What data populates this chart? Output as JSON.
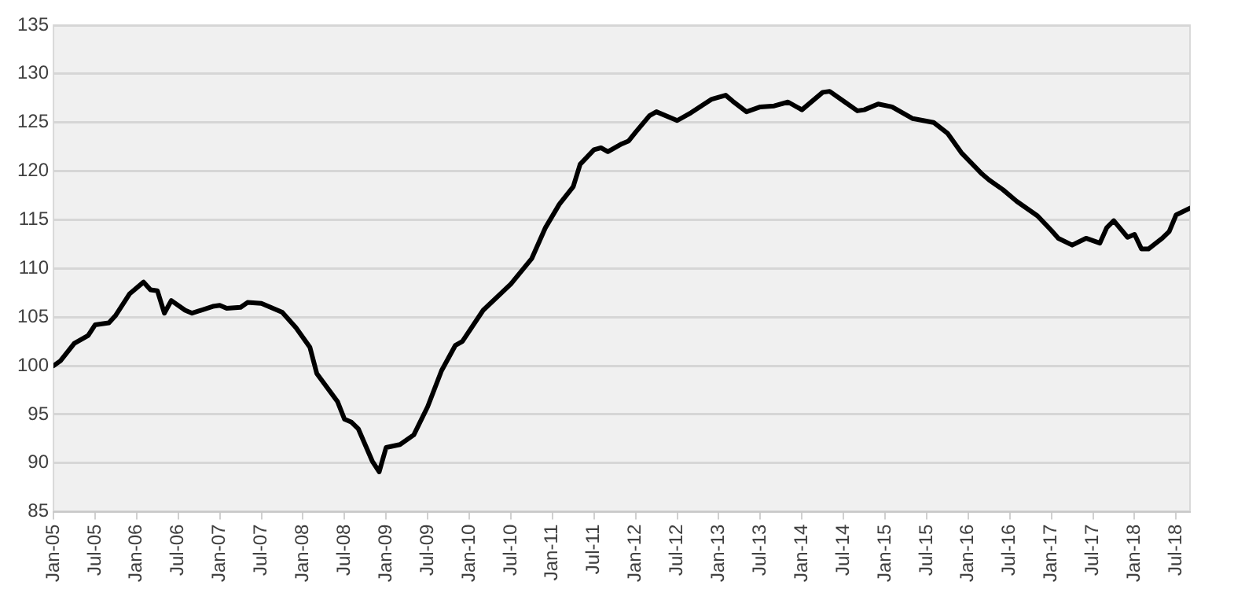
{
  "chart_data": {
    "type": "line",
    "color": "#000000",
    "marker": "none",
    "line_style": "solid",
    "grid": "y",
    "legend": false,
    "x": [
      "2005-01",
      "2005-02",
      "2005-04",
      "2005-06",
      "2005-07",
      "2005-09",
      "2005-10",
      "2005-12",
      "2006-02",
      "2006-03",
      "2006-04",
      "2006-05",
      "2006-06",
      "2006-08",
      "2006-09",
      "2006-12",
      "2007-01",
      "2007-02",
      "2007-04",
      "2007-05",
      "2007-07",
      "2007-10",
      "2007-12",
      "2008-02",
      "2008-03",
      "2008-06",
      "2008-07",
      "2008-08",
      "2008-09",
      "2008-11",
      "2008-12",
      "2009-01",
      "2009-03",
      "2009-05",
      "2009-07",
      "2009-09",
      "2009-11",
      "2009-12",
      "2010-03",
      "2010-07",
      "2010-10",
      "2010-12",
      "2011-02",
      "2011-04",
      "2011-05",
      "2011-07",
      "2011-08",
      "2011-09",
      "2011-11",
      "2011-12",
      "2012-01",
      "2012-03",
      "2012-04",
      "2012-07",
      "2012-09",
      "2012-12",
      "2013-02",
      "2013-03",
      "2013-05",
      "2013-07",
      "2013-09",
      "2013-11",
      "2014-01",
      "2014-04",
      "2014-05",
      "2014-07",
      "2014-09",
      "2014-10",
      "2014-12",
      "2015-02",
      "2015-05",
      "2015-08",
      "2015-10",
      "2015-12",
      "2016-03",
      "2016-04",
      "2016-06",
      "2016-08",
      "2016-11",
      "2017-01",
      "2017-02",
      "2017-04",
      "2017-06",
      "2017-08",
      "2017-09",
      "2017-10",
      "2017-12",
      "2018-01",
      "2018-02",
      "2018-03",
      "2018-05",
      "2018-06",
      "2018-07",
      "2018-09"
    ],
    "values": [
      100.0,
      100.5,
      102.3,
      103.1,
      104.2,
      104.4,
      105.2,
      107.4,
      108.6,
      107.8,
      107.7,
      105.4,
      106.7,
      105.7,
      105.4,
      106.1,
      106.2,
      105.9,
      106.0,
      106.5,
      106.4,
      105.5,
      103.9,
      101.9,
      99.2,
      96.3,
      94.5,
      94.2,
      93.5,
      90.2,
      89.1,
      91.6,
      91.9,
      92.9,
      95.8,
      99.5,
      102.1,
      102.5,
      105.7,
      108.4,
      111.0,
      114.2,
      116.6,
      118.4,
      120.7,
      122.2,
      122.4,
      122.0,
      122.8,
      123.1,
      124.0,
      125.7,
      126.1,
      125.2,
      126.0,
      127.4,
      127.8,
      127.2,
      126.1,
      126.6,
      126.7,
      127.1,
      126.3,
      128.1,
      128.2,
      127.2,
      126.2,
      126.3,
      126.9,
      126.6,
      125.4,
      125.0,
      123.9,
      121.9,
      119.7,
      119.1,
      118.1,
      116.9,
      115.4,
      113.9,
      113.1,
      112.4,
      113.1,
      112.6,
      114.2,
      114.9,
      113.2,
      113.5,
      112.0,
      112.0,
      113.1,
      113.8,
      115.5,
      116.2
    ],
    "xlim": [
      "2005-01",
      "2018-09"
    ],
    "xticks": [
      {
        "value": "2005-01",
        "label": "Jan-05"
      },
      {
        "value": "2005-07",
        "label": "Jul-05"
      },
      {
        "value": "2006-01",
        "label": "Jan-06"
      },
      {
        "value": "2006-07",
        "label": "Jul-06"
      },
      {
        "value": "2007-01",
        "label": "Jan-07"
      },
      {
        "value": "2007-07",
        "label": "Jul-07"
      },
      {
        "value": "2008-01",
        "label": "Jan-08"
      },
      {
        "value": "2008-07",
        "label": "Jul-08"
      },
      {
        "value": "2009-01",
        "label": "Jan-09"
      },
      {
        "value": "2009-07",
        "label": "Jul-09"
      },
      {
        "value": "2010-01",
        "label": "Jan-10"
      },
      {
        "value": "2010-07",
        "label": "Jul-10"
      },
      {
        "value": "2011-01",
        "label": "Jan-11"
      },
      {
        "value": "2011-07",
        "label": "Jul-11"
      },
      {
        "value": "2012-01",
        "label": "Jan-12"
      },
      {
        "value": "2012-07",
        "label": "Jul-12"
      },
      {
        "value": "2013-01",
        "label": "Jan-13"
      },
      {
        "value": "2013-07",
        "label": "Jul-13"
      },
      {
        "value": "2014-01",
        "label": "Jan-14"
      },
      {
        "value": "2014-07",
        "label": "Jul-14"
      },
      {
        "value": "2015-01",
        "label": "Jan-15"
      },
      {
        "value": "2015-07",
        "label": "Jul-15"
      },
      {
        "value": "2016-01",
        "label": "Jan-16"
      },
      {
        "value": "2016-07",
        "label": "Jul-16"
      },
      {
        "value": "2017-01",
        "label": "Jan-17"
      },
      {
        "value": "2017-07",
        "label": "Jul-17"
      },
      {
        "value": "2018-01",
        "label": "Jan-18"
      },
      {
        "value": "2018-07",
        "label": "Jul-18"
      }
    ],
    "ylim": [
      85,
      135
    ],
    "yticks": [
      85,
      90,
      95,
      100,
      105,
      110,
      115,
      120,
      125,
      130,
      135
    ]
  }
}
